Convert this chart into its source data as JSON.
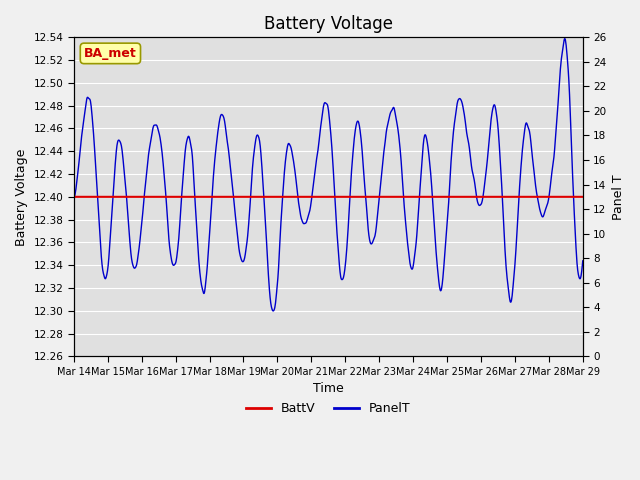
{
  "title": "Battery Voltage",
  "xlabel": "Time",
  "ylabel_left": "Battery Voltage",
  "ylabel_right": "Panel T",
  "series": {
    "BattV_label": "BattV",
    "PanelT_label": "PanelT",
    "BattV_color": "#dd0000",
    "PanelT_color": "#0000cc"
  },
  "ylim_left": [
    12.26,
    12.54
  ],
  "ylim_right": [
    0,
    26
  ],
  "yticks_left": [
    12.26,
    12.28,
    12.3,
    12.32,
    12.34,
    12.36,
    12.38,
    12.4,
    12.42,
    12.44,
    12.46,
    12.48,
    12.5,
    12.52,
    12.54
  ],
  "yticks_right": [
    0,
    2,
    4,
    6,
    8,
    10,
    12,
    14,
    16,
    18,
    20,
    22,
    24,
    26
  ],
  "xtick_labels": [
    "Mar 14",
    "Mar 15",
    "Mar 16",
    "Mar 17",
    "Mar 18",
    "Mar 19",
    "Mar 20",
    "Mar 21",
    "Mar 22",
    "Mar 23",
    "Mar 24",
    "Mar 25",
    "Mar 26",
    "Mar 27",
    "Mar 28",
    "Mar 29"
  ],
  "bg_color": "#f0f0f0",
  "plot_bg_color": "#e0e0e0",
  "grid_color": "#ffffff",
  "annotation_text": "BA_met",
  "annotation_bg": "#ffffaa",
  "annotation_border": "#999900",
  "annotation_text_color": "#cc0000",
  "batt_v_value": 12.4,
  "panel_t_scale_min": 0,
  "panel_t_scale_max": 26
}
